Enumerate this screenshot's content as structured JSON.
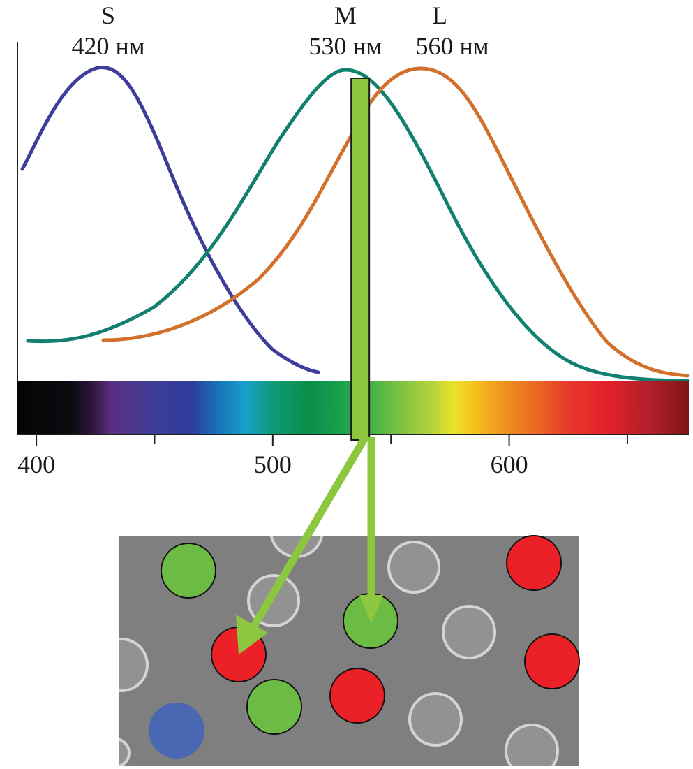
{
  "cones": [
    {
      "letter": "S",
      "peak_label": "420 нм",
      "peak_nm": 420,
      "color": "#3f3d9c"
    },
    {
      "letter": "M",
      "peak_label": "530 нм",
      "peak_nm": 530,
      "color": "#11806e"
    },
    {
      "letter": "L",
      "peak_label": "560 нм",
      "peak_nm": 560,
      "color": "#d2702c"
    }
  ],
  "axis": {
    "range_nm": [
      392,
      676
    ],
    "major_ticks": [
      400,
      500,
      600
    ],
    "minor_ticks": [
      450,
      550,
      650
    ],
    "tick_labels": [
      "400",
      "500",
      "600"
    ]
  },
  "stimulus": {
    "wavelength_nm": 537,
    "color": "#8dc63f"
  },
  "retina": {
    "background": "#7f7f7f",
    "cone_colors": {
      "red": "#ec2127",
      "green": "#6cbb45",
      "blue": "#4a67b4"
    }
  }
}
